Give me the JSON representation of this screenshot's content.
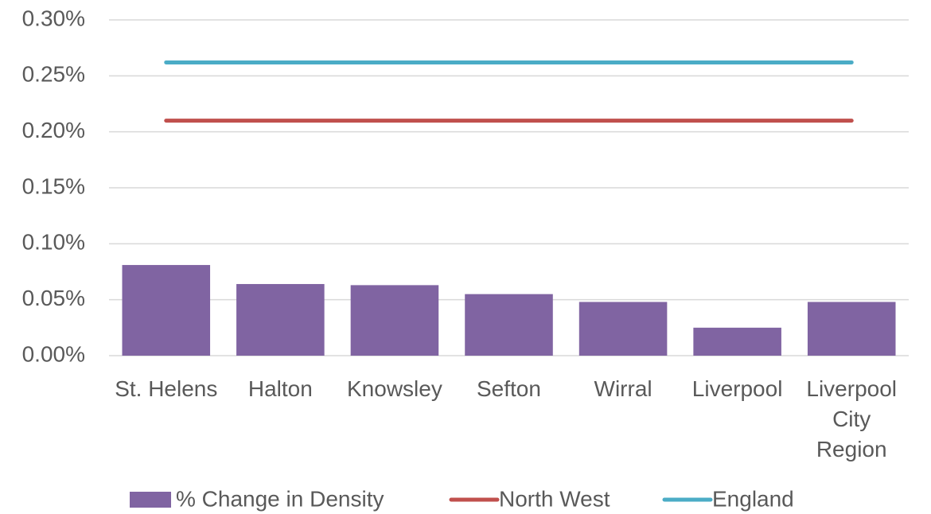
{
  "chart_data": {
    "type": "bar",
    "categories": [
      "St. Helens",
      "Halton",
      "Knowsley",
      "Sefton",
      "Wirral",
      "Liverpool",
      "Liverpool City Region"
    ],
    "series": [
      {
        "name": "% Change in Density",
        "type": "bar",
        "color": "#8064a2",
        "values": [
          0.081,
          0.064,
          0.063,
          0.055,
          0.048,
          0.025,
          0.048
        ]
      },
      {
        "name": "North West",
        "type": "line",
        "color": "#c0504d",
        "values": [
          0.21,
          0.21,
          0.21,
          0.21,
          0.21,
          0.21,
          0.21
        ]
      },
      {
        "name": "England",
        "type": "line",
        "color": "#4bacc6",
        "values": [
          0.262,
          0.262,
          0.262,
          0.262,
          0.262,
          0.262,
          0.262
        ]
      }
    ],
    "ylim": [
      0,
      0.3
    ],
    "yticks": [
      {
        "value": 0,
        "label": "0.00%"
      },
      {
        "value": 0.05,
        "label": "0.05%"
      },
      {
        "value": 0.1,
        "label": "0.10%"
      },
      {
        "value": 0.15,
        "label": "0.15%"
      },
      {
        "value": 0.2,
        "label": "0.20%"
      },
      {
        "value": 0.25,
        "label": "0.25%"
      },
      {
        "value": 0.3,
        "label": "0.30%"
      }
    ],
    "grid": true,
    "legend": "bottom"
  }
}
